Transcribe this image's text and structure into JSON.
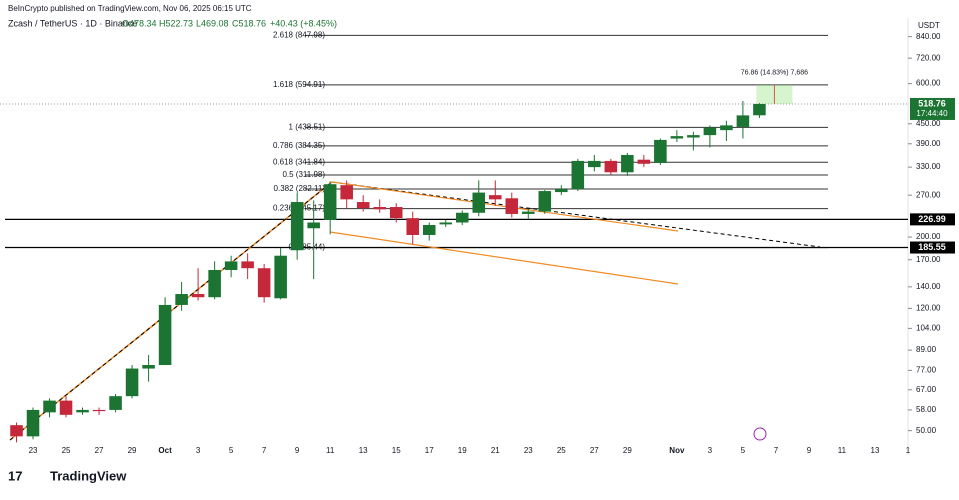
{
  "header": {
    "publisher": "BeInCrypto published on TradingView.com, Nov 06, 2025 06:15 UTC",
    "symbol": "Zcash / TetherUS · 1D · Binance",
    "open": "O478.34",
    "high": "H522.73",
    "low": "L469.08",
    "close": "C518.76",
    "change": "+40.43 (+8.45%)"
  },
  "footer": {
    "logo": "TradingView"
  },
  "chart_data": {
    "type": "candlestick",
    "y_axis_title": "USDT",
    "log_scale": true,
    "up_color": "#1b7431",
    "down_color": "#c4283a",
    "xlim": [
      -1,
      54
    ],
    "xticks": [
      {
        "value": 1,
        "label": "23"
      },
      {
        "value": 3,
        "label": "25"
      },
      {
        "value": 5,
        "label": "27"
      },
      {
        "value": 7,
        "label": "29"
      },
      {
        "value": 9,
        "label": "Oct"
      },
      {
        "value": 11,
        "label": "3"
      },
      {
        "value": 13,
        "label": "5"
      },
      {
        "value": 15,
        "label": "7"
      },
      {
        "value": 17,
        "label": "9"
      },
      {
        "value": 19,
        "label": "11"
      },
      {
        "value": 21,
        "label": "13"
      },
      {
        "value": 23,
        "label": "15"
      },
      {
        "value": 25,
        "label": "17"
      },
      {
        "value": 27,
        "label": "19"
      },
      {
        "value": 29,
        "label": "21"
      },
      {
        "value": 31,
        "label": "23"
      },
      {
        "value": 33,
        "label": "25"
      },
      {
        "value": 35,
        "label": "27"
      },
      {
        "value": 37,
        "label": "29"
      },
      {
        "value": 40,
        "label": "Nov"
      },
      {
        "value": 42,
        "label": "3"
      },
      {
        "value": 44,
        "label": "5"
      },
      {
        "value": 46,
        "label": "7"
      },
      {
        "value": 48,
        "label": "9"
      },
      {
        "value": 50,
        "label": "11"
      },
      {
        "value": 52,
        "label": "13"
      },
      {
        "value": 54,
        "label": "1"
      }
    ],
    "ylim": [
      42,
      960
    ],
    "yticks": [
      {
        "value": 840,
        "label": "840.00"
      },
      {
        "value": 720,
        "label": "720.00"
      },
      {
        "value": 600,
        "label": "600.00"
      },
      {
        "value": 450,
        "label": "450.00"
      },
      {
        "value": 390,
        "label": "390.00"
      },
      {
        "value": 330,
        "label": "330.00"
      },
      {
        "value": 270,
        "label": "270.00"
      },
      {
        "value": 200,
        "label": "200.00"
      },
      {
        "value": 170,
        "label": "170.00"
      },
      {
        "value": 140,
        "label": "140.00"
      },
      {
        "value": 120,
        "label": "120.00"
      },
      {
        "value": 104,
        "label": "104.00"
      },
      {
        "value": 89,
        "label": "89.00"
      },
      {
        "value": 77,
        "label": "77.00"
      },
      {
        "value": 67,
        "label": "67.00"
      },
      {
        "value": 58,
        "label": "58.00"
      },
      {
        "value": 50,
        "label": "50.00"
      }
    ],
    "x": [
      0,
      1,
      2,
      3,
      4,
      5,
      6,
      7,
      8,
      9,
      10,
      11,
      12,
      13,
      14,
      15,
      16,
      17,
      18,
      19,
      20,
      21,
      22,
      23,
      24,
      25,
      26,
      27,
      28,
      29,
      30,
      31,
      32,
      33,
      34,
      35,
      36,
      37,
      38,
      39,
      40,
      41,
      42,
      43,
      44,
      45
    ],
    "open": [
      52,
      48,
      57,
      62,
      57,
      58,
      58,
      64,
      78,
      80,
      123,
      133,
      130,
      158,
      168,
      160,
      129,
      182,
      213,
      226,
      290,
      257,
      248,
      248,
      229,
      203,
      219,
      222,
      238,
      270,
      264,
      236,
      240,
      276,
      282,
      330,
      345,
      318,
      348,
      340,
      405,
      408,
      415,
      430,
      440,
      478.34
    ],
    "high": [
      53,
      59,
      63,
      64,
      59,
      59,
      65,
      80,
      86,
      130,
      145,
      160,
      168,
      175,
      178,
      165,
      185,
      275,
      260,
      298,
      300,
      270,
      262,
      255,
      240,
      222,
      226,
      242,
      300,
      300,
      275,
      245,
      280,
      290,
      350,
      360,
      350,
      365,
      360,
      405,
      430,
      425,
      445,
      460,
      530,
      522.73
    ],
    "low": [
      46,
      47,
      55,
      55,
      56,
      56,
      57,
      63,
      71,
      80,
      118,
      127,
      128,
      150,
      148,
      125,
      128,
      170,
      148,
      204,
      245,
      240,
      238,
      222,
      190,
      195,
      215,
      218,
      232,
      250,
      230,
      228,
      236,
      270,
      278,
      320,
      312,
      310,
      330,
      335,
      395,
      372,
      380,
      398,
      405,
      469.08
    ],
    "close": [
      48,
      58,
      62,
      56,
      58,
      57.5,
      64,
      78,
      80,
      123,
      133,
      130,
      158,
      168,
      160,
      130,
      175,
      257,
      222,
      292,
      262,
      246,
      244,
      229,
      203,
      218,
      222,
      238,
      275,
      262,
      236,
      240,
      278,
      282,
      345,
      345,
      318,
      360,
      338,
      401,
      412,
      415,
      438,
      445,
      478,
      518.76
    ],
    "fib_levels": [
      {
        "value": 847.98,
        "label": "2.618 (847.98)"
      },
      {
        "value": 594.91,
        "label": "1.618 (594.91)"
      },
      {
        "value": 438.51,
        "label": "1 (438.51)"
      },
      {
        "value": 384.35,
        "label": "0.786 (384.35)"
      },
      {
        "value": 341.84,
        "label": "0.618 (341.84)"
      },
      {
        "value": 311.98,
        "label": "0.5 (311.98)"
      },
      {
        "value": 282.11,
        "label": "0.382 (282.11)"
      },
      {
        "value": 245.17,
        "label": "0.236 (245.17)"
      },
      {
        "value": 185.44,
        "label": "0 (185.44)"
      }
    ],
    "support_levels": [
      226.99,
      185.55
    ],
    "last_price": {
      "value": 518.76,
      "countdown": "17:44:40"
    },
    "measure": {
      "label": "76.86 (14.83%) 7,686"
    }
  }
}
